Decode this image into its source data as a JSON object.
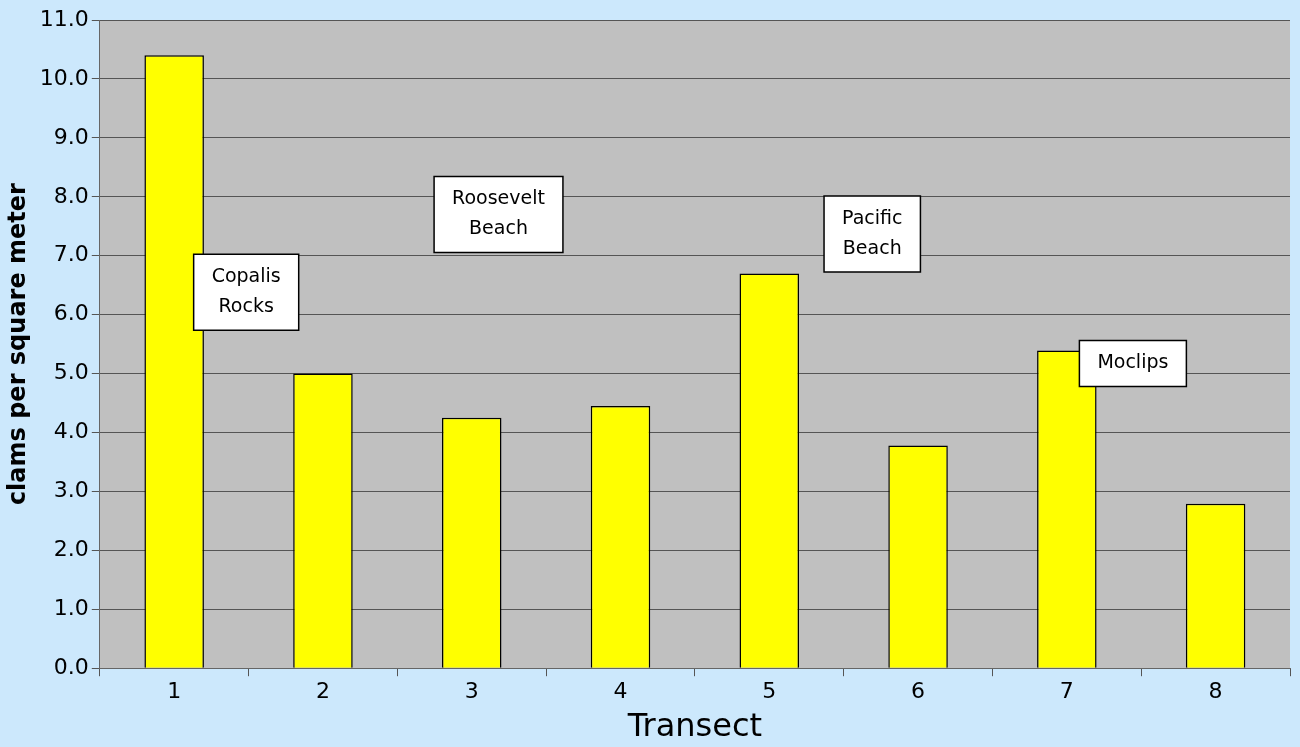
{
  "chart_data": {
    "type": "bar",
    "xlabel": "Transect",
    "ylabel": "clams per square meter",
    "categories": [
      "1",
      "2",
      "3",
      "4",
      "5",
      "6",
      "7",
      "8"
    ],
    "values": [
      10.4,
      5.0,
      4.25,
      4.45,
      6.7,
      3.78,
      5.39,
      2.79
    ],
    "color": "#ffff00",
    "ylim": [
      0,
      11
    ],
    "yticks": [
      {
        "value": 0,
        "label": "0.0"
      },
      {
        "value": 1,
        "label": "1.0"
      },
      {
        "value": 2,
        "label": "2.0"
      },
      {
        "value": 3,
        "label": "3.0"
      },
      {
        "value": 4,
        "label": "4.0"
      },
      {
        "value": 5,
        "label": "5.0"
      },
      {
        "value": 6,
        "label": "6.0"
      },
      {
        "value": 7,
        "label": "7.0"
      },
      {
        "value": 8,
        "label": "8.0"
      },
      {
        "value": 9,
        "label": "9.0"
      },
      {
        "value": 10,
        "label": "10.0"
      },
      {
        "value": 11,
        "label": "11.0"
      }
    ],
    "grid": "y",
    "legend": false,
    "annotations": [
      "Copalis\nRocks",
      "Roosevelt\nBeach",
      "Pacific\nBeach",
      "Moclips"
    ]
  }
}
